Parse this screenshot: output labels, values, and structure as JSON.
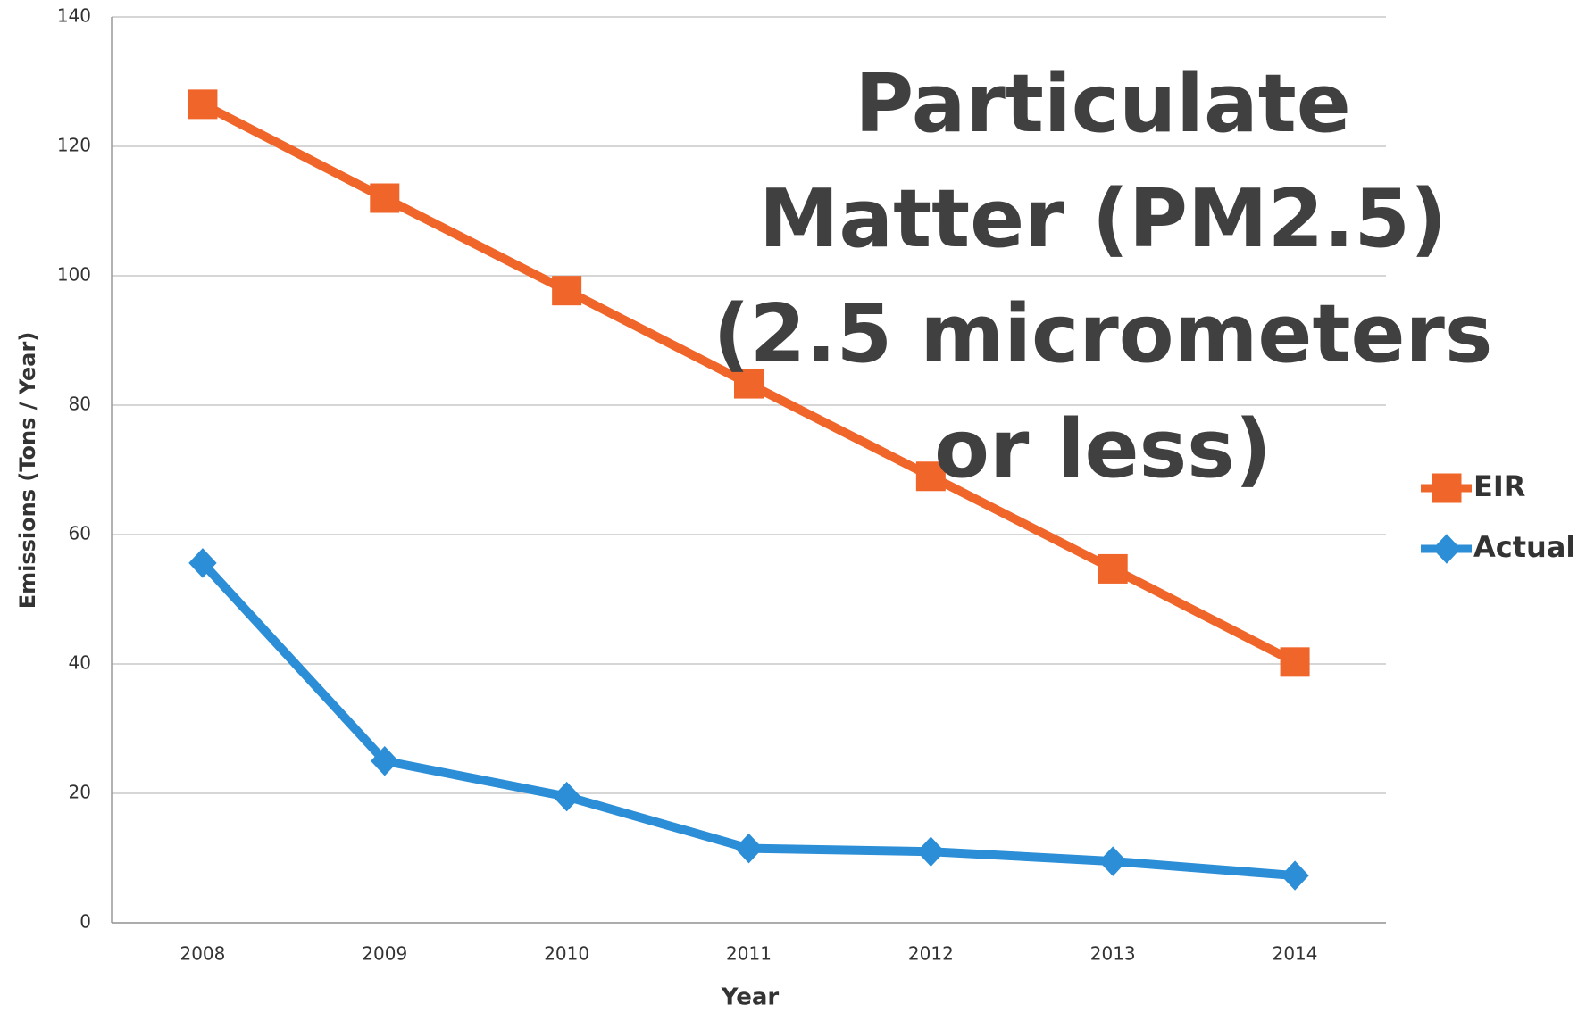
{
  "chart_data": {
    "type": "line",
    "title": [
      "Particulate",
      "Matter (PM2.5)",
      "(2.5 micrometers",
      "or less)"
    ],
    "x_label": "Year",
    "y_label": "Emissions (Tons / Year)",
    "categories": [
      "2008",
      "2009",
      "2010",
      "2011",
      "2012",
      "2013",
      "2014"
    ],
    "series": [
      {
        "name": "EIR",
        "color": "#f0652a",
        "marker": "square",
        "values": [
          126.5,
          112,
          97.7,
          83.3,
          69,
          54.7,
          40.3
        ]
      },
      {
        "name": "Actual",
        "color": "#2b8ed6",
        "marker": "diamond",
        "values": [
          55.6,
          25,
          19.5,
          11.5,
          11,
          9.5,
          7.3
        ]
      }
    ],
    "ylim": [
      0,
      140
    ],
    "yticks": [
      0,
      20,
      40,
      60,
      80,
      100,
      120,
      140
    ],
    "grid": true,
    "legend": "right"
  }
}
